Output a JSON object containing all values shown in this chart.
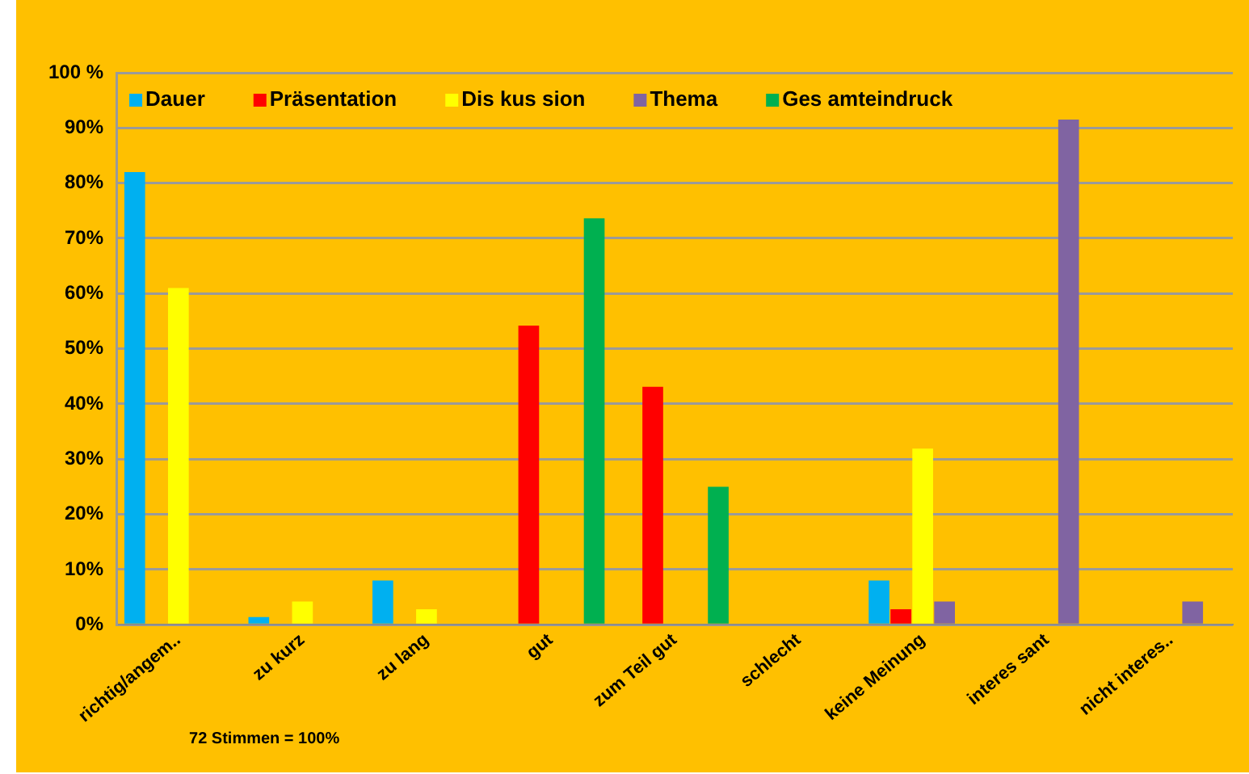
{
  "chart_data": {
    "type": "bar",
    "categories": [
      "richtig/angem..",
      "zu kurz",
      "zu lang",
      "gut",
      "zum Teil gut",
      "schlecht",
      "keine Meinung",
      "interes sant",
      "nicht interes.."
    ],
    "series": [
      {
        "name": "Dauer",
        "color": "#00b0f0",
        "values": [
          82,
          1.4,
          8,
          null,
          null,
          null,
          8,
          null,
          null
        ]
      },
      {
        "name": "Präsentation",
        "color": "#ff0000",
        "values": [
          null,
          null,
          null,
          54.2,
          43.1,
          null,
          2.8,
          null,
          null
        ]
      },
      {
        "name": "Dis kus sion",
        "color": "#ffff00",
        "values": [
          61,
          4.2,
          2.8,
          null,
          null,
          null,
          31.9,
          null,
          null
        ]
      },
      {
        "name": "Thema",
        "color": "#8064a2",
        "values": [
          null,
          null,
          null,
          null,
          null,
          null,
          4.2,
          91.5,
          4.2
        ]
      },
      {
        "name": "Ges amteindruck",
        "color": "#00b050",
        "values": [
          null,
          null,
          null,
          73.6,
          25,
          null,
          null,
          null,
          null
        ]
      }
    ],
    "ylim": [
      0,
      100
    ],
    "yticks": [
      {
        "value": 0,
        "label": "0%"
      },
      {
        "value": 10,
        "label": "10%"
      },
      {
        "value": 20,
        "label": "20%"
      },
      {
        "value": 30,
        "label": "30%"
      },
      {
        "value": 40,
        "label": "40%"
      },
      {
        "value": 50,
        "label": "50%"
      },
      {
        "value": 60,
        "label": "60%"
      },
      {
        "value": 70,
        "label": "70%"
      },
      {
        "value": 80,
        "label": "80%"
      },
      {
        "value": 90,
        "label": "90%"
      },
      {
        "value": 100,
        "label": "100 %"
      }
    ],
    "grid": "y",
    "legend": "top",
    "annotations": [
      "72 Stimmen = 100%"
    ]
  }
}
